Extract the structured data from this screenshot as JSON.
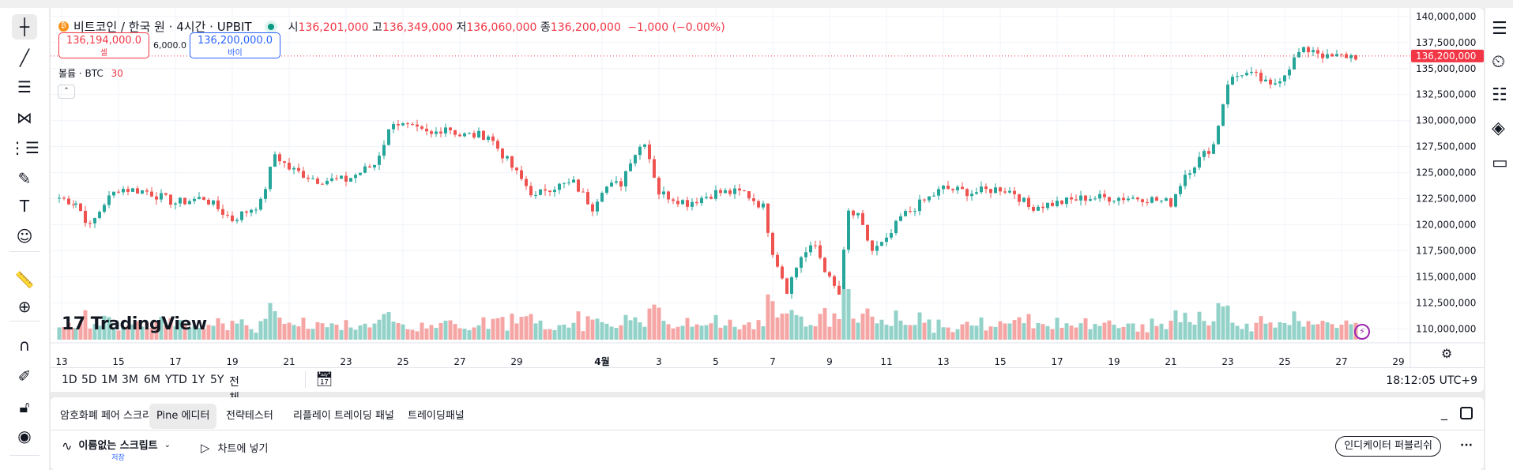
{
  "header": {
    "symbol_title": "비트코인 / 한국 원 · 4시간 · UPBIT",
    "open_label": "시",
    "open": "136,201,000",
    "high_label": "고",
    "high": "136,349,000",
    "low_label": "저",
    "low": "136,060,000",
    "close_label": "종",
    "close": "136,200,000",
    "change": "−1,000 (−0.00%)",
    "sell_price": "136,194,000.0",
    "sell_label": "셀",
    "spread": "6,000.0",
    "buy_price": "136,200,000.0",
    "buy_label": "바이",
    "volume_label": "볼륨 · BTC",
    "volume_value": "30",
    "collapse_icon": "chevron-up-icon"
  },
  "colors": {
    "up": "#26a69a",
    "down": "#ef5350",
    "up_volume": "#93d2c9",
    "down_volume": "#f5a6a4",
    "price_tag": "#f23645",
    "buy": "#2962ff"
  },
  "price_axis": {
    "ticks": [
      "140,000,000",
      "137,500,000",
      "135,000,000",
      "132,500,000",
      "130,000,000",
      "127,500,000",
      "125,000,000",
      "122,500,000",
      "120,000,000",
      "117,500,000",
      "115,000,000",
      "112,500,000",
      "110,000,000"
    ],
    "current_price": "136,200,000",
    "settings_icon": "gear-icon"
  },
  "time_axis": {
    "ticks": [
      "13",
      "15",
      "17",
      "19",
      "21",
      "23",
      "25",
      "27",
      "29",
      "4월",
      "3",
      "5",
      "7",
      "9",
      "11",
      "13",
      "15",
      "17",
      "19",
      "21",
      "23",
      "25",
      "27",
      "29"
    ]
  },
  "watermark": "TradingView",
  "chart_data": {
    "type": "candlestick",
    "interval": "4시간",
    "ylim": [
      110000000,
      140000000
    ],
    "path_note_columns": [
      "month",
      "day",
      "hour",
      "close"
    ],
    "price_path": [
      [
        3,
        12,
        22,
        122600000
      ],
      [
        3,
        13,
        12,
        122100000
      ],
      [
        3,
        14,
        0,
        119800000
      ],
      [
        3,
        14,
        12,
        122100000
      ],
      [
        3,
        15,
        0,
        123500000
      ],
      [
        3,
        16,
        0,
        123200000
      ],
      [
        3,
        17,
        0,
        122100000
      ],
      [
        3,
        18,
        0,
        122600000
      ],
      [
        3,
        19,
        0,
        120500000
      ],
      [
        3,
        20,
        0,
        122100000
      ],
      [
        3,
        20,
        12,
        126800000
      ],
      [
        3,
        21,
        0,
        125400000
      ],
      [
        3,
        22,
        0,
        124300000
      ],
      [
        3,
        23,
        0,
        124300000
      ],
      [
        3,
        24,
        0,
        125800000
      ],
      [
        3,
        24,
        16,
        130000000
      ],
      [
        3,
        25,
        0,
        129500000
      ],
      [
        3,
        26,
        0,
        128600000
      ],
      [
        3,
        26,
        12,
        129500000
      ],
      [
        3,
        27,
        0,
        128600000
      ],
      [
        3,
        28,
        0,
        128600000
      ],
      [
        3,
        29,
        0,
        124900000
      ],
      [
        3,
        29,
        16,
        122600000
      ],
      [
        3,
        30,
        0,
        123500000
      ],
      [
        3,
        31,
        0,
        124000000
      ],
      [
        3,
        31,
        16,
        121700000
      ],
      [
        4,
        1,
        0,
        123500000
      ],
      [
        4,
        1,
        16,
        124000000
      ],
      [
        4,
        2,
        0,
        126300000
      ],
      [
        4,
        2,
        12,
        128100000
      ],
      [
        4,
        3,
        0,
        123100000
      ],
      [
        4,
        4,
        0,
        122100000
      ],
      [
        4,
        5,
        0,
        123100000
      ],
      [
        4,
        6,
        0,
        123100000
      ],
      [
        4,
        6,
        16,
        121700000
      ],
      [
        4,
        7,
        0,
        117500000
      ],
      [
        4,
        7,
        12,
        113800000
      ],
      [
        4,
        8,
        0,
        117000000
      ],
      [
        4,
        8,
        12,
        118000000
      ],
      [
        4,
        9,
        0,
        114700000
      ],
      [
        4,
        9,
        8,
        113300000
      ],
      [
        4,
        9,
        16,
        121200000
      ],
      [
        4,
        10,
        0,
        120700000
      ],
      [
        4,
        10,
        12,
        117500000
      ],
      [
        4,
        11,
        0,
        118400000
      ],
      [
        4,
        11,
        12,
        120700000
      ],
      [
        4,
        12,
        0,
        121700000
      ],
      [
        4,
        13,
        0,
        123500000
      ],
      [
        4,
        14,
        0,
        123100000
      ],
      [
        4,
        15,
        0,
        123500000
      ],
      [
        4,
        15,
        12,
        123100000
      ],
      [
        4,
        16,
        0,
        121700000
      ],
      [
        4,
        17,
        0,
        122100000
      ],
      [
        4,
        18,
        0,
        122600000
      ],
      [
        4,
        19,
        0,
        122600000
      ],
      [
        4,
        20,
        0,
        122600000
      ],
      [
        4,
        21,
        0,
        122100000
      ],
      [
        4,
        21,
        12,
        124900000
      ],
      [
        4,
        22,
        0,
        126300000
      ],
      [
        4,
        22,
        12,
        127700000
      ],
      [
        4,
        23,
        0,
        133700000
      ],
      [
        4,
        23,
        12,
        134600000
      ],
      [
        4,
        24,
        0,
        134200000
      ],
      [
        4,
        24,
        12,
        133200000
      ],
      [
        4,
        25,
        0,
        134600000
      ],
      [
        4,
        25,
        12,
        136500000
      ],
      [
        4,
        26,
        0,
        136900000
      ],
      [
        4,
        26,
        12,
        136000000
      ],
      [
        4,
        27,
        0,
        136200000
      ],
      [
        4,
        27,
        16,
        136200000
      ]
    ]
  },
  "range_bar": {
    "ranges": [
      "1D",
      "5D",
      "1M",
      "3M",
      "6M",
      "YTD",
      "1Y",
      "5Y",
      "전체"
    ],
    "goto_date_icon": "calendar-arrow-icon",
    "clock": "18:12:05 UTC+9"
  },
  "bottom_panel": {
    "tabs": [
      "암호화폐 페어 스크리너",
      "Pine 에디터",
      "전략테스터",
      "리플레이 트레이딩 패널",
      "트레이딩패널"
    ],
    "active_tab": "Pine 에디터",
    "script_name": "이름없는 스크립트",
    "script_status": "저장",
    "add_to_chart": "차트에 넣기",
    "publish": "인디케이터 퍼블리쉬",
    "more": "···"
  },
  "left_toolbar": [
    "crosshair-icon",
    "trend-line-icon",
    "fib-retracement-icon",
    "pattern-icon",
    "prediction-icon",
    "brush-icon",
    "text-icon",
    "emoji-icon",
    "ruler-icon",
    "zoom-in-icon",
    "magnet-icon",
    "lock-drawings-icon",
    "unlock-icon",
    "eye-icon"
  ],
  "right_toolbar": [
    "watchlist-icon",
    "alert-clock-icon",
    "add-list-icon",
    "layers-icon",
    "chat-icon"
  ]
}
